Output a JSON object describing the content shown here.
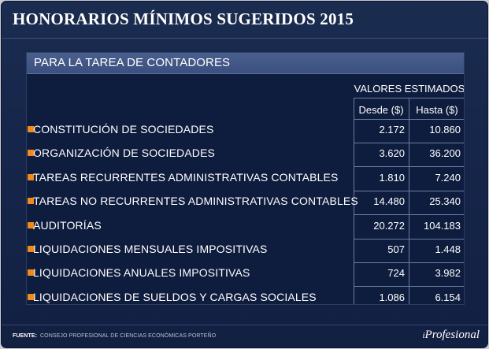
{
  "title": "HONORARIOS MÍNIMOS SUGERIDOS 2015",
  "panel": {
    "title": "PARA LA TAREA DE CONTADORES",
    "values_label": "VALORES ESTIMADOS",
    "col_desde": "Desde ($)",
    "col_hasta": "Hasta ($)"
  },
  "rows": [
    {
      "label": "CONSTITUCIÓN DE SOCIEDADES",
      "desde": "2.172",
      "hasta": "10.860"
    },
    {
      "label": "ORGANIZACIÓN DE SOCIEDADES",
      "desde": "3.620",
      "hasta": "36.200"
    },
    {
      "label": "TAREAS RECURRENTES ADMINISTRATIVAS CONTABLES",
      "desde": "1.810",
      "hasta": "7.240"
    },
    {
      "label": "TAREAS NO RECURRENTES ADMINISTRATIVAS CONTABLES",
      "desde": "14.480",
      "hasta": "25.340"
    },
    {
      "label": "AUDITORÍAS",
      "desde": "20.272",
      "hasta": "104.183"
    },
    {
      "label": "LIQUIDACIONES MENSUALES IMPOSITIVAS",
      "desde": "507",
      "hasta": "1.448"
    },
    {
      "label": "LIQUIDACIONES ANUALES IMPOSITIVAS",
      "desde": "724",
      "hasta": "3.982"
    },
    {
      "label": "LIQUIDACIONES DE SUELDOS Y CARGAS SOCIALES",
      "desde": "1.086",
      "hasta": "6.154"
    }
  ],
  "footer": {
    "label": "FUENTE:",
    "source": "CONSEJO PROFESIONAL DE CIENCIAS ECONÓMICAS PORTEÑO"
  },
  "brand": {
    "prefix": "i",
    "name": "Profesional"
  },
  "colors": {
    "bullet": "#f08a1c",
    "background": "#16264a",
    "header": "#3f5484"
  }
}
